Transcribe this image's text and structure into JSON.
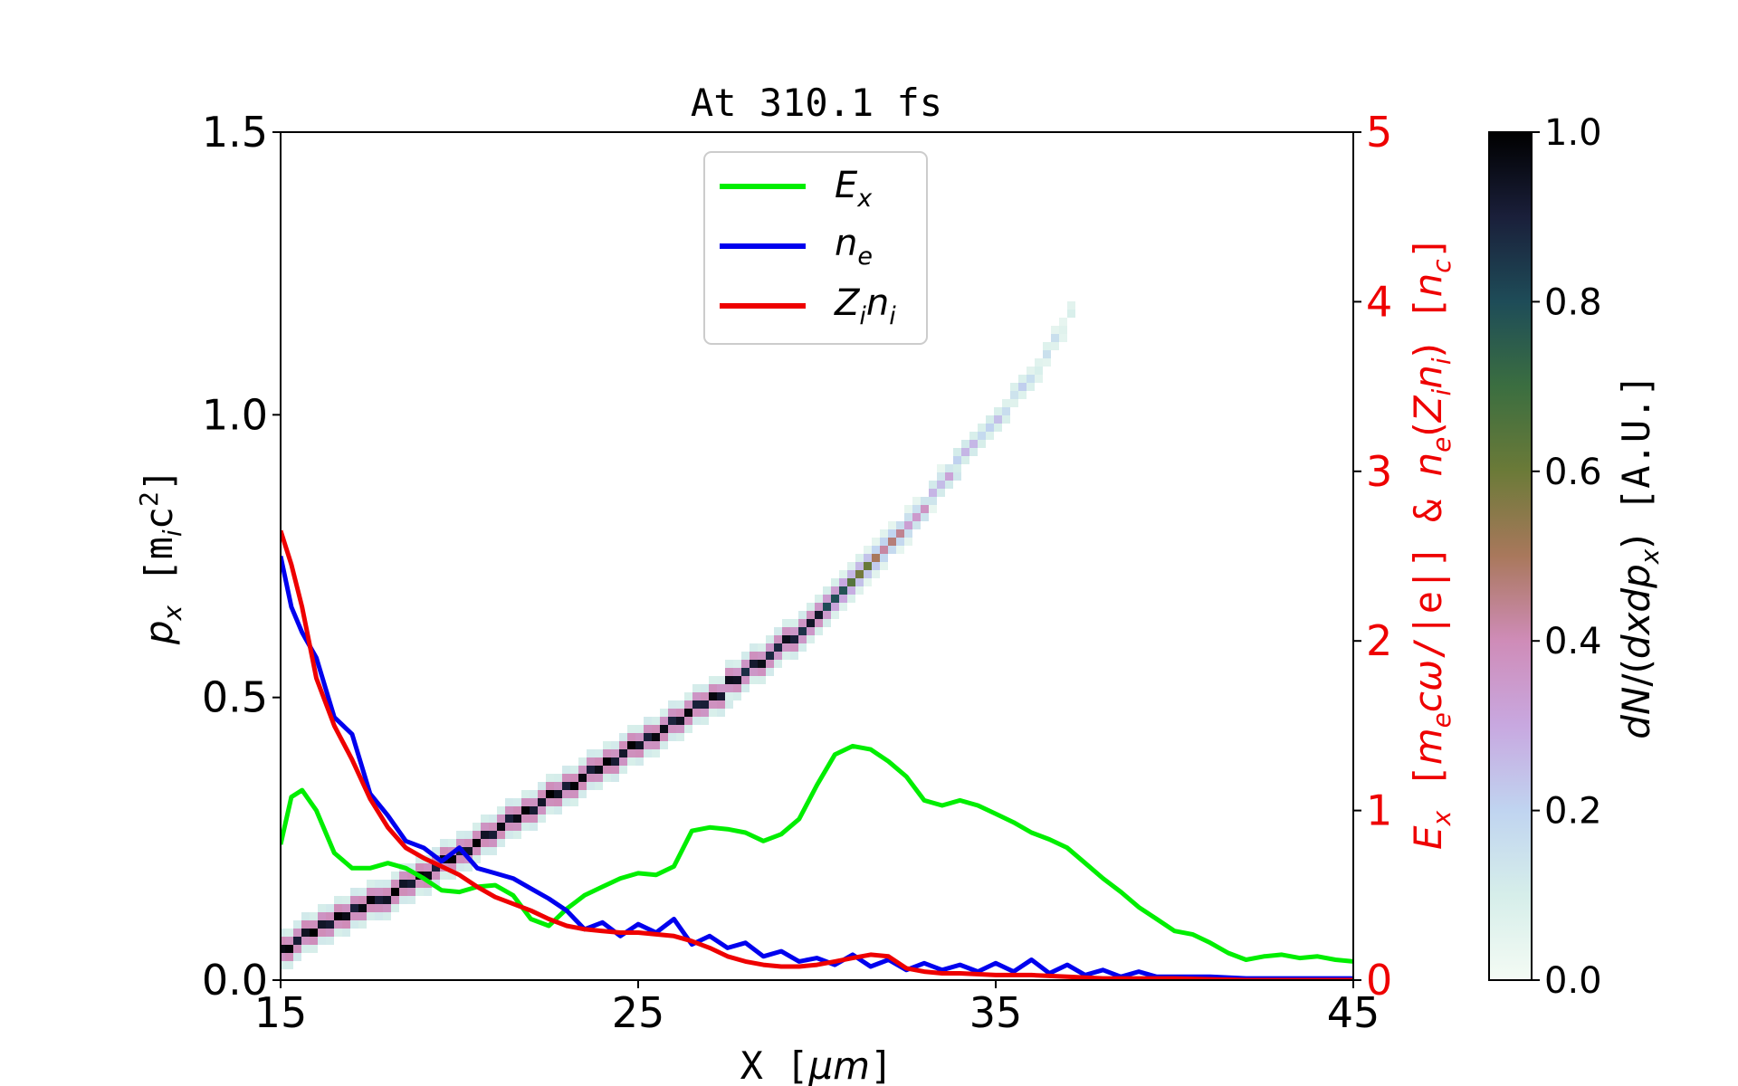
{
  "chart_data": {
    "type": "line",
    "title": "At 310.1 fs",
    "xlabel": "X [μm]",
    "ylabel_left": "px [mic²]",
    "ylabel_right": "Ex [mecω/|e|] & ne(Zini) [nc]",
    "colorbar_label": "dN/(dxdpx) [A.U.]",
    "xlim": [
      15,
      45
    ],
    "ylim_left": [
      0,
      1.5
    ],
    "ylim_right": [
      0,
      5
    ],
    "clim": [
      0,
      1
    ],
    "x_ticks": [
      "15",
      "25",
      "35",
      "45"
    ],
    "y_ticks_left": [
      "0.0",
      "0.5",
      "1.0",
      "1.5"
    ],
    "y_ticks_right": [
      "0",
      "1",
      "2",
      "3",
      "4",
      "5"
    ],
    "colorbar_ticks": [
      "0.0",
      "0.2",
      "0.4",
      "0.6",
      "0.8",
      "1.0"
    ],
    "legend_position": "upper-center",
    "legend": [
      {
        "label": "Ex",
        "color": "#00ee00"
      },
      {
        "label": "ne",
        "color": "#0000ee"
      },
      {
        "label": "Zini",
        "color": "#ee0000"
      }
    ],
    "series": [
      {
        "name": "Ex",
        "axis": "right",
        "color": "#00ee00",
        "x": [
          15,
          15.3,
          15.6,
          16,
          16.5,
          17,
          17.5,
          18,
          18.5,
          19,
          19.5,
          20,
          20.5,
          21,
          21.5,
          22,
          22.5,
          23,
          23.5,
          24,
          24.5,
          25,
          25.5,
          26,
          26.5,
          27,
          27.5,
          28,
          28.5,
          29,
          29.5,
          30,
          30.5,
          31,
          31.5,
          32,
          32.5,
          33,
          33.5,
          34,
          34.5,
          35,
          35.5,
          36,
          36.5,
          37,
          37.5,
          38,
          38.5,
          39,
          39.5,
          40,
          40.5,
          41,
          41.5,
          42,
          42.5,
          43,
          43.5,
          44,
          44.5,
          45
        ],
        "y": [
          0.8,
          1.08,
          1.12,
          1.0,
          0.75,
          0.66,
          0.66,
          0.69,
          0.66,
          0.6,
          0.53,
          0.52,
          0.55,
          0.56,
          0.5,
          0.36,
          0.32,
          0.42,
          0.5,
          0.55,
          0.6,
          0.63,
          0.62,
          0.67,
          0.88,
          0.9,
          0.89,
          0.87,
          0.82,
          0.86,
          0.95,
          1.15,
          1.33,
          1.38,
          1.36,
          1.29,
          1.2,
          1.06,
          1.03,
          1.06,
          1.03,
          0.98,
          0.93,
          0.87,
          0.83,
          0.78,
          0.69,
          0.6,
          0.52,
          0.43,
          0.36,
          0.29,
          0.27,
          0.22,
          0.16,
          0.12,
          0.14,
          0.15,
          0.13,
          0.14,
          0.12,
          0.11
        ]
      },
      {
        "name": "ne",
        "axis": "right",
        "color": "#0000ee",
        "x": [
          15,
          15.3,
          15.6,
          16,
          16.5,
          17,
          17.5,
          18,
          18.5,
          19,
          19.5,
          20,
          20.5,
          21,
          21.5,
          22,
          22.5,
          23,
          23.5,
          24,
          24.5,
          25,
          25.5,
          26,
          26.5,
          27,
          27.5,
          28,
          28.5,
          29,
          29.5,
          30,
          30.5,
          31,
          31.5,
          32,
          32.5,
          33,
          33.5,
          34,
          34.5,
          35,
          35.5,
          36,
          36.5,
          37,
          37.5,
          38,
          38.5,
          39,
          39.5,
          40,
          41,
          42,
          43,
          44,
          45
        ],
        "y": [
          2.5,
          2.2,
          2.05,
          1.9,
          1.55,
          1.45,
          1.1,
          0.97,
          0.82,
          0.78,
          0.7,
          0.78,
          0.66,
          0.63,
          0.6,
          0.54,
          0.48,
          0.41,
          0.3,
          0.34,
          0.26,
          0.33,
          0.28,
          0.36,
          0.21,
          0.26,
          0.19,
          0.22,
          0.14,
          0.17,
          0.11,
          0.13,
          0.09,
          0.15,
          0.08,
          0.12,
          0.06,
          0.1,
          0.06,
          0.09,
          0.05,
          0.1,
          0.05,
          0.12,
          0.04,
          0.09,
          0.03,
          0.06,
          0.02,
          0.05,
          0.02,
          0.02,
          0.02,
          0.01,
          0.01,
          0.01,
          0.01
        ]
      },
      {
        "name": "Zini",
        "axis": "right",
        "color": "#ee0000",
        "x": [
          15,
          15.3,
          15.6,
          16,
          16.5,
          17,
          17.5,
          18,
          18.5,
          19,
          19.5,
          20,
          20.5,
          21,
          21.5,
          22,
          22.5,
          23,
          23.5,
          24,
          24.5,
          25,
          25.5,
          26,
          26.5,
          27,
          27.5,
          28,
          28.5,
          29,
          29.5,
          30,
          30.5,
          31,
          31.5,
          32,
          32.5,
          33,
          33.5,
          34,
          35,
          36,
          37,
          38,
          39,
          40,
          42,
          45
        ],
        "y": [
          2.65,
          2.45,
          2.2,
          1.78,
          1.5,
          1.3,
          1.07,
          0.9,
          0.78,
          0.72,
          0.67,
          0.62,
          0.55,
          0.49,
          0.45,
          0.41,
          0.36,
          0.32,
          0.3,
          0.29,
          0.28,
          0.28,
          0.27,
          0.26,
          0.23,
          0.19,
          0.14,
          0.11,
          0.09,
          0.08,
          0.08,
          0.09,
          0.11,
          0.13,
          0.15,
          0.14,
          0.07,
          0.05,
          0.04,
          0.04,
          0.03,
          0.03,
          0.02,
          0.01,
          0.01,
          0.01,
          0,
          0
        ]
      }
    ],
    "heatmap": {
      "name": "dN/(dxdpx)",
      "axis": "left",
      "band_x": [
        15,
        16,
        17,
        18,
        19,
        20,
        21,
        22,
        23,
        24,
        25,
        26,
        27,
        28,
        29,
        30,
        31,
        32,
        33,
        34,
        35,
        36,
        37
      ],
      "band_px": [
        0.06,
        0.1,
        0.13,
        0.16,
        0.2,
        0.24,
        0.28,
        0.31,
        0.35,
        0.39,
        0.43,
        0.47,
        0.51,
        0.55,
        0.6,
        0.65,
        0.72,
        0.79,
        0.86,
        0.93,
        1.0,
        1.08,
        1.18
      ],
      "density_x": [
        15,
        24,
        30,
        31.5,
        33,
        35,
        37
      ],
      "density": [
        1.0,
        1.0,
        0.95,
        0.55,
        0.35,
        0.25,
        0.15
      ]
    }
  }
}
